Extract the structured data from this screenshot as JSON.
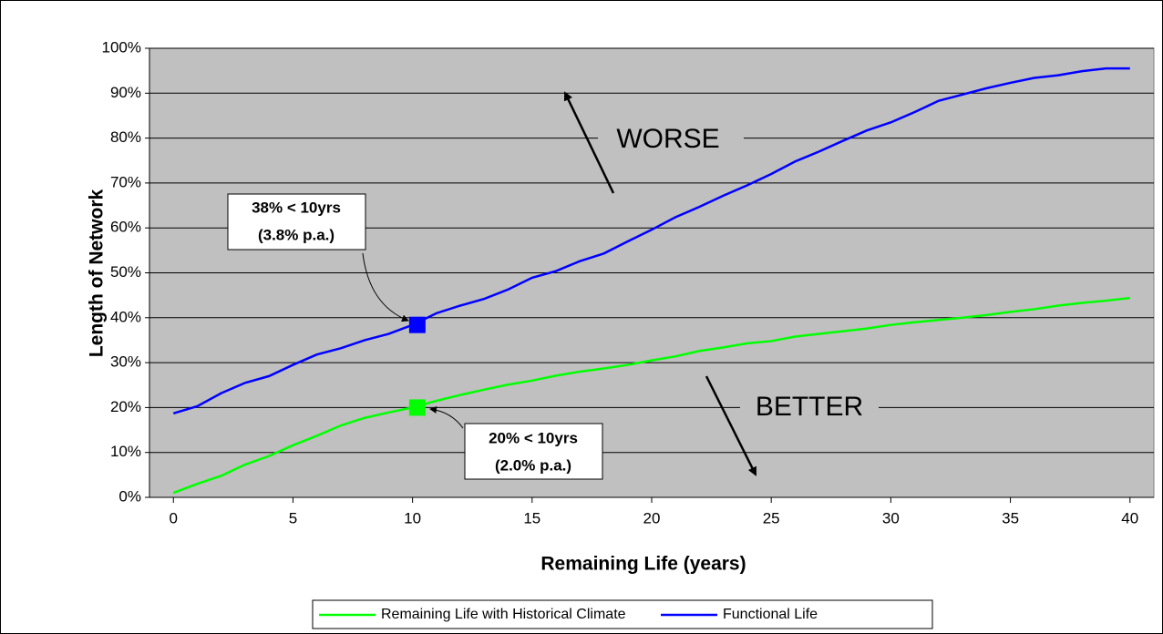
{
  "chart_data": {
    "type": "line",
    "x_label": "Remaining Life (years)",
    "y_label": "Length of Network",
    "x": [
      0,
      1,
      2,
      3,
      4,
      5,
      6,
      7,
      8,
      9,
      10,
      11,
      12,
      13,
      14,
      15,
      16,
      17,
      18,
      19,
      20,
      21,
      22,
      23,
      24,
      25,
      26,
      27,
      28,
      29,
      30,
      31,
      32,
      33,
      34,
      35,
      36,
      37,
      38,
      39,
      40
    ],
    "series": [
      {
        "name": "Remaining Life with Historical Climate",
        "color": "#00ff00",
        "values": [
          1,
          3,
          4.8,
          7.3,
          9.2,
          11.6,
          13.7,
          16,
          17.7,
          18.9,
          20,
          21.5,
          22.8,
          24,
          25.1,
          26,
          27.1,
          28,
          28.7,
          29.5,
          30.5,
          31.4,
          32.6,
          33.4,
          34.3,
          34.8,
          35.8,
          36.4,
          37,
          37.6,
          38.4,
          39,
          39.5,
          40,
          40.6,
          41.3,
          41.9,
          42.7,
          43.3,
          43.8,
          44.4
        ],
        "marker_x": 10.2,
        "marker_y": 20
      },
      {
        "name": "Functional Life",
        "color": "#0000ff",
        "values": [
          18.7,
          20.3,
          23.2,
          25.5,
          27,
          29.5,
          31.8,
          33.2,
          35,
          36.4,
          38.4,
          41,
          42.7,
          44.2,
          46.3,
          48.9,
          50.4,
          52.6,
          54.3,
          57,
          59.6,
          62.4,
          64.7,
          67.2,
          69.5,
          72,
          74.8,
          77,
          79.4,
          81.7,
          83.5,
          85.8,
          88.3,
          89.7,
          91.1,
          92.3,
          93.4,
          94,
          94.9,
          95.5,
          95.5
        ],
        "marker_x": 10.2,
        "marker_y": 38.4
      }
    ],
    "xlim": [
      -1,
      41
    ],
    "xticks": [
      0,
      5,
      10,
      15,
      20,
      25,
      30,
      35,
      40
    ],
    "ylim": [
      0,
      100
    ],
    "yticks": [
      {
        "value": 0,
        "label": "0%"
      },
      {
        "value": 10,
        "label": "10%"
      },
      {
        "value": 20,
        "label": "20%"
      },
      {
        "value": 30,
        "label": "30%"
      },
      {
        "value": 40,
        "label": "40%"
      },
      {
        "value": 50,
        "label": "50%"
      },
      {
        "value": 60,
        "label": "60%"
      },
      {
        "value": 70,
        "label": "70%"
      },
      {
        "value": 80,
        "label": "80%"
      },
      {
        "value": 90,
        "label": "90%"
      },
      {
        "value": 100,
        "label": "100%"
      }
    ],
    "grid": true,
    "legend": "bottom",
    "annotations": [
      "WORSE",
      "BETTER"
    ],
    "callouts": [
      [
        "38% < 10yrs",
        "(3.8% p.a.)"
      ],
      [
        "20% < 10yrs",
        "(2.0% p.a.)"
      ]
    ]
  }
}
